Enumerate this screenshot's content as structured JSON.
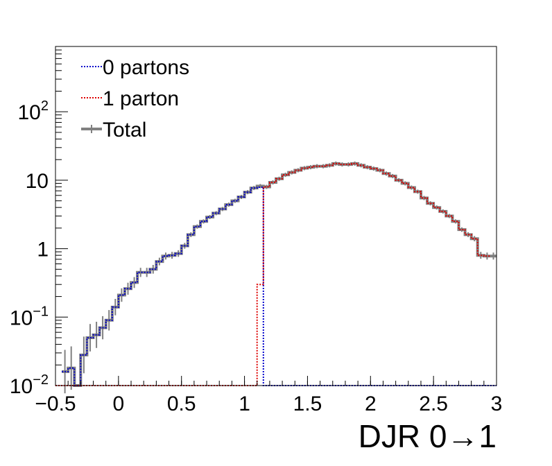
{
  "chart_data": {
    "type": "step-histogram",
    "xlabel": "DJR 0→1",
    "ylabel": "",
    "xlim": [
      -0.5,
      3.0
    ],
    "ylim": [
      0.01,
      900
    ],
    "yscale": "log",
    "x_ticks": [
      -0.5,
      0,
      0.5,
      1,
      1.5,
      2,
      2.5,
      3
    ],
    "x_tick_labels": [
      "−0.5",
      "0",
      "0.5",
      "1",
      "1.5",
      "2",
      "2.5",
      "3"
    ],
    "y_ticks": [
      {
        "value": 0.01,
        "base": "10",
        "exp": "−2"
      },
      {
        "value": 0.1,
        "base": "10",
        "exp": "−1"
      },
      {
        "value": 1,
        "base": "1",
        "exp": ""
      },
      {
        "value": 10,
        "base": "10",
        "exp": ""
      },
      {
        "value": 100,
        "base": "10",
        "exp": "2"
      }
    ],
    "legend_position": "top-left",
    "bin_width": 0.05,
    "series": [
      {
        "name": "0 partons",
        "color": "#0000cc",
        "style": "dotted",
        "bins": [
          [
            -0.45,
            0.016
          ],
          [
            -0.4,
            0.018
          ],
          [
            -0.35,
            0.01
          ],
          [
            -0.3,
            0.028
          ],
          [
            -0.25,
            0.05
          ],
          [
            -0.2,
            0.055
          ],
          [
            -0.15,
            0.07
          ],
          [
            -0.1,
            0.09
          ],
          [
            -0.05,
            0.14
          ],
          [
            0.0,
            0.21
          ],
          [
            0.05,
            0.26
          ],
          [
            0.1,
            0.32
          ],
          [
            0.15,
            0.45
          ],
          [
            0.2,
            0.45
          ],
          [
            0.25,
            0.5
          ],
          [
            0.3,
            0.65
          ],
          [
            0.35,
            0.78
          ],
          [
            0.4,
            0.8
          ],
          [
            0.45,
            0.85
          ],
          [
            0.5,
            1.1
          ],
          [
            0.55,
            1.6
          ],
          [
            0.6,
            2.1
          ],
          [
            0.65,
            2.5
          ],
          [
            0.7,
            2.9
          ],
          [
            0.75,
            3.3
          ],
          [
            0.8,
            3.8
          ],
          [
            0.85,
            4.4
          ],
          [
            0.9,
            5.0
          ],
          [
            0.95,
            5.7
          ],
          [
            1.0,
            6.7
          ],
          [
            1.05,
            7.7
          ],
          [
            1.1,
            7.9
          ],
          [
            1.15,
            0.01
          ],
          [
            1.2,
            0.01
          ],
          [
            1.25,
            0.01
          ],
          [
            1.3,
            0.01
          ],
          [
            1.35,
            0.01
          ],
          [
            1.4,
            0.01
          ],
          [
            1.45,
            0.01
          ],
          [
            1.5,
            0.01
          ],
          [
            1.55,
            0.01
          ],
          [
            1.6,
            0.01
          ],
          [
            1.65,
            0.01
          ],
          [
            1.7,
            0.01
          ],
          [
            1.75,
            0.01
          ],
          [
            1.8,
            0.01
          ],
          [
            1.85,
            0.01
          ],
          [
            1.9,
            0.01
          ],
          [
            1.95,
            0.01
          ],
          [
            2.0,
            0.01
          ],
          [
            2.05,
            0.01
          ],
          [
            2.1,
            0.01
          ],
          [
            2.15,
            0.01
          ],
          [
            2.2,
            0.01
          ],
          [
            2.25,
            0.01
          ],
          [
            2.3,
            0.01
          ],
          [
            2.35,
            0.01
          ],
          [
            2.4,
            0.01
          ],
          [
            2.45,
            0.01
          ],
          [
            2.5,
            0.01
          ],
          [
            2.55,
            0.01
          ],
          [
            2.6,
            0.01
          ],
          [
            2.65,
            0.01
          ],
          [
            2.7,
            0.01
          ],
          [
            2.75,
            0.01
          ],
          [
            2.8,
            0.01
          ],
          [
            2.85,
            0.01
          ],
          [
            2.9,
            0.01
          ],
          [
            2.95,
            0.01
          ]
        ]
      },
      {
        "name": "1 parton",
        "color": "#dd0000",
        "style": "dotted",
        "bins": [
          [
            -0.5,
            0.01
          ],
          [
            -0.45,
            0.01
          ],
          [
            -0.4,
            0.01
          ],
          [
            -0.35,
            0.01
          ],
          [
            -0.3,
            0.01
          ],
          [
            -0.25,
            0.01
          ],
          [
            -0.2,
            0.01
          ],
          [
            -0.15,
            0.01
          ],
          [
            -0.1,
            0.01
          ],
          [
            -0.05,
            0.01
          ],
          [
            0.0,
            0.01
          ],
          [
            0.05,
            0.01
          ],
          [
            0.1,
            0.01
          ],
          [
            0.15,
            0.01
          ],
          [
            0.2,
            0.01
          ],
          [
            0.25,
            0.01
          ],
          [
            0.3,
            0.01
          ],
          [
            0.35,
            0.01
          ],
          [
            0.4,
            0.01
          ],
          [
            0.45,
            0.01
          ],
          [
            0.5,
            0.01
          ],
          [
            0.55,
            0.01
          ],
          [
            0.6,
            0.01
          ],
          [
            0.65,
            0.01
          ],
          [
            0.7,
            0.01
          ],
          [
            0.75,
            0.01
          ],
          [
            0.8,
            0.01
          ],
          [
            0.85,
            0.01
          ],
          [
            0.9,
            0.01
          ],
          [
            0.95,
            0.01
          ],
          [
            1.0,
            0.01
          ],
          [
            1.05,
            0.01
          ],
          [
            1.1,
            0.3
          ],
          [
            1.15,
            8.0
          ],
          [
            1.2,
            9.3
          ],
          [
            1.25,
            10.5
          ],
          [
            1.3,
            12.0
          ],
          [
            1.35,
            13.0
          ],
          [
            1.4,
            14.0
          ],
          [
            1.45,
            15.0
          ],
          [
            1.5,
            15.5
          ],
          [
            1.55,
            16.0
          ],
          [
            1.6,
            16.0
          ],
          [
            1.65,
            16.5
          ],
          [
            1.7,
            17.5
          ],
          [
            1.75,
            17.0
          ],
          [
            1.8,
            17.0
          ],
          [
            1.85,
            17.5
          ],
          [
            1.9,
            16.5
          ],
          [
            1.95,
            15.5
          ],
          [
            2.0,
            14.8
          ],
          [
            2.05,
            14.0
          ],
          [
            2.1,
            12.5
          ],
          [
            2.15,
            11.5
          ],
          [
            2.2,
            10.0
          ],
          [
            2.25,
            9.0
          ],
          [
            2.3,
            7.8
          ],
          [
            2.35,
            6.8
          ],
          [
            2.4,
            5.5
          ],
          [
            2.45,
            4.6
          ],
          [
            2.5,
            4.0
          ],
          [
            2.55,
            3.5
          ],
          [
            2.6,
            3.0
          ],
          [
            2.65,
            2.5
          ],
          [
            2.7,
            1.9
          ],
          [
            2.75,
            1.6
          ],
          [
            2.8,
            1.4
          ],
          [
            2.85,
            0.8
          ],
          [
            2.9,
            0.78
          ]
        ]
      },
      {
        "name": "Total",
        "color": "#808080",
        "style": "solid",
        "bins": [
          [
            -0.45,
            0.016
          ],
          [
            -0.4,
            0.018
          ],
          [
            -0.35,
            0.01
          ],
          [
            -0.3,
            0.028
          ],
          [
            -0.25,
            0.05
          ],
          [
            -0.2,
            0.055
          ],
          [
            -0.15,
            0.07
          ],
          [
            -0.1,
            0.09
          ],
          [
            -0.05,
            0.14
          ],
          [
            0.0,
            0.21
          ],
          [
            0.05,
            0.26
          ],
          [
            0.1,
            0.32
          ],
          [
            0.15,
            0.45
          ],
          [
            0.2,
            0.45
          ],
          [
            0.25,
            0.5
          ],
          [
            0.3,
            0.65
          ],
          [
            0.35,
            0.78
          ],
          [
            0.4,
            0.8
          ],
          [
            0.45,
            0.85
          ],
          [
            0.5,
            1.1
          ],
          [
            0.55,
            1.6
          ],
          [
            0.6,
            2.1
          ],
          [
            0.65,
            2.5
          ],
          [
            0.7,
            2.9
          ],
          [
            0.75,
            3.3
          ],
          [
            0.8,
            3.8
          ],
          [
            0.85,
            4.4
          ],
          [
            0.9,
            5.0
          ],
          [
            0.95,
            5.7
          ],
          [
            1.0,
            6.7
          ],
          [
            1.05,
            7.7
          ],
          [
            1.1,
            8.2
          ],
          [
            1.15,
            8.0
          ],
          [
            1.2,
            9.3
          ],
          [
            1.25,
            10.5
          ],
          [
            1.3,
            12.0
          ],
          [
            1.35,
            13.0
          ],
          [
            1.4,
            14.0
          ],
          [
            1.45,
            15.0
          ],
          [
            1.5,
            15.5
          ],
          [
            1.55,
            16.0
          ],
          [
            1.6,
            16.0
          ],
          [
            1.65,
            16.5
          ],
          [
            1.7,
            17.5
          ],
          [
            1.75,
            17.0
          ],
          [
            1.8,
            17.0
          ],
          [
            1.85,
            17.5
          ],
          [
            1.9,
            16.5
          ],
          [
            1.95,
            15.5
          ],
          [
            2.0,
            14.8
          ],
          [
            2.05,
            14.0
          ],
          [
            2.1,
            12.5
          ],
          [
            2.15,
            11.5
          ],
          [
            2.2,
            10.0
          ],
          [
            2.25,
            9.0
          ],
          [
            2.3,
            7.8
          ],
          [
            2.35,
            6.8
          ],
          [
            2.4,
            5.5
          ],
          [
            2.45,
            4.6
          ],
          [
            2.5,
            4.0
          ],
          [
            2.55,
            3.5
          ],
          [
            2.6,
            3.0
          ],
          [
            2.65,
            2.5
          ],
          [
            2.7,
            1.9
          ],
          [
            2.75,
            1.6
          ],
          [
            2.8,
            1.4
          ],
          [
            2.85,
            0.8
          ],
          [
            2.9,
            0.78
          ],
          [
            2.95,
            0.78
          ]
        ]
      }
    ]
  }
}
